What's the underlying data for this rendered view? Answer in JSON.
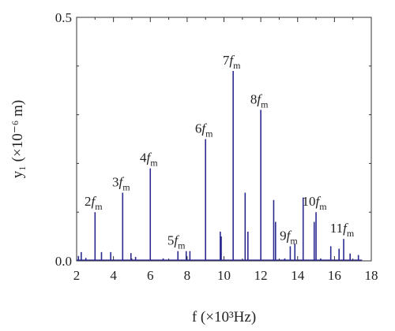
{
  "chart_data": {
    "type": "line",
    "title": "",
    "xlabel": "f (×10³Hz)",
    "ylabel": "y₁ (×10⁻⁶ m)",
    "xlim": [
      2,
      18
    ],
    "ylim": [
      0,
      0.5
    ],
    "x_ticks": [
      "2",
      "4",
      "6",
      "8",
      "10",
      "12",
      "14",
      "16",
      "18"
    ],
    "y_ticks": [
      "0.0",
      "0.5"
    ],
    "grid": false,
    "series_color": "#2b2b8f",
    "series": [
      {
        "peaks": [
          {
            "x": 2.1,
            "y": 0.01
          },
          {
            "x": 2.25,
            "y": 0.018
          },
          {
            "x": 2.5,
            "y": 0.006
          },
          {
            "x": 3.0,
            "y": 0.1
          },
          {
            "x": 3.35,
            "y": 0.018
          },
          {
            "x": 3.85,
            "y": 0.018
          },
          {
            "x": 4.5,
            "y": 0.14
          },
          {
            "x": 4.95,
            "y": 0.016
          },
          {
            "x": 5.2,
            "y": 0.008
          },
          {
            "x": 6.0,
            "y": 0.19
          },
          {
            "x": 6.7,
            "y": 0.005
          },
          {
            "x": 7.5,
            "y": 0.02
          },
          {
            "x": 7.95,
            "y": 0.02
          },
          {
            "x": 8.15,
            "y": 0.02
          },
          {
            "x": 9.0,
            "y": 0.25
          },
          {
            "x": 9.8,
            "y": 0.06
          },
          {
            "x": 9.85,
            "y": 0.05
          },
          {
            "x": 10.5,
            "y": 0.39
          },
          {
            "x": 11.15,
            "y": 0.14
          },
          {
            "x": 11.3,
            "y": 0.06
          },
          {
            "x": 12.0,
            "y": 0.31
          },
          {
            "x": 12.7,
            "y": 0.125
          },
          {
            "x": 12.8,
            "y": 0.08
          },
          {
            "x": 13.3,
            "y": 0.005
          },
          {
            "x": 13.6,
            "y": 0.03
          },
          {
            "x": 13.85,
            "y": 0.035
          },
          {
            "x": 14.3,
            "y": 0.13
          },
          {
            "x": 14.9,
            "y": 0.08
          },
          {
            "x": 15.0,
            "y": 0.1
          },
          {
            "x": 15.25,
            "y": 0.005
          },
          {
            "x": 15.8,
            "y": 0.03
          },
          {
            "x": 16.25,
            "y": 0.025
          },
          {
            "x": 16.5,
            "y": 0.045
          },
          {
            "x": 16.85,
            "y": 0.015
          },
          {
            "x": 17.3,
            "y": 0.012
          }
        ]
      }
    ],
    "annotations": [
      {
        "base": "2",
        "x": 3.0,
        "y": 0.1
      },
      {
        "base": "3",
        "x": 4.5,
        "y": 0.14
      },
      {
        "base": "4",
        "x": 6.0,
        "y": 0.19
      },
      {
        "base": "5",
        "x": 7.5,
        "y": 0.02
      },
      {
        "base": "6",
        "x": 9.0,
        "y": 0.25
      },
      {
        "base": "7",
        "x": 10.5,
        "y": 0.39
      },
      {
        "base": "8",
        "x": 12.0,
        "y": 0.31
      },
      {
        "base": "9",
        "x": 13.6,
        "y": 0.03
      },
      {
        "base": "10",
        "x": 15.0,
        "y": 0.1
      },
      {
        "base": "11",
        "x": 16.5,
        "y": 0.045
      }
    ],
    "annotation_symbol": "f",
    "annotation_subscript": "m"
  }
}
